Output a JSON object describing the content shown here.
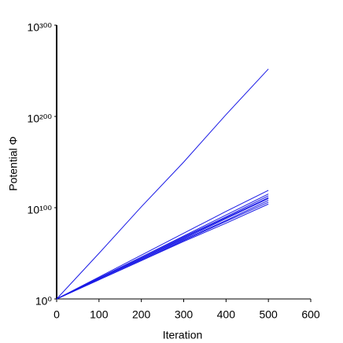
{
  "chart_data": {
    "type": "line",
    "xlabel": "Iteration",
    "ylabel": "Potential Φ",
    "log_y": true,
    "x": [
      0,
      100,
      200,
      300,
      400,
      500
    ],
    "series": [
      {
        "color": "#1a1ae6",
        "values": [
          1,
          1e+50,
          1e+101,
          1e+150,
          1e+202,
          1e+252
        ]
      },
      {
        "color": "#1a1ae6",
        "values": [
          1,
          1e+24,
          1e+48,
          1e+72,
          1e+96,
          1e+119
        ]
      },
      {
        "color": "#1a1ae6",
        "values": [
          1,
          1e+23,
          1e+46,
          1e+69,
          1e+92,
          1e+115
        ]
      },
      {
        "color": "#1a1ae6",
        "values": [
          1,
          1e+23,
          1e+45,
          1e+68,
          1e+90,
          1e+113
        ]
      },
      {
        "color": "#1a1ae6",
        "values": [
          1,
          1e+22,
          1e+44,
          1e+67,
          1e+89,
          1e+111
        ]
      },
      {
        "color": "#1a1ae6",
        "values": [
          1,
          1e+22,
          1e+44,
          1e+66,
          1e+88,
          1e+110
        ]
      },
      {
        "color": "#1a1ae6",
        "values": [
          1,
          1e+22,
          1e+43,
          1e+65,
          1e+86,
          1e+108
        ]
      },
      {
        "color": "#1a1ae6",
        "values": [
          1,
          1e+21,
          1e+42,
          1e+64,
          1e+85,
          1e+106
        ]
      },
      {
        "color": "#1a1ae6",
        "values": [
          1,
          1e+21,
          1e+42,
          1e+63,
          1e+83,
          1e+104
        ]
      }
    ],
    "xlim": [
      0,
      600
    ],
    "xticks": [
      0,
      100,
      200,
      300,
      400,
      500,
      600
    ],
    "ylim": [
      1,
      1e+300
    ],
    "yticks": [
      {
        "value": 1,
        "label": "10⁰"
      },
      {
        "value": 1e+100,
        "label": "10¹⁰⁰"
      },
      {
        "value": 1e+200,
        "label": "10²⁰⁰"
      },
      {
        "value": 1e+300,
        "label": "10³⁰⁰"
      }
    ]
  }
}
